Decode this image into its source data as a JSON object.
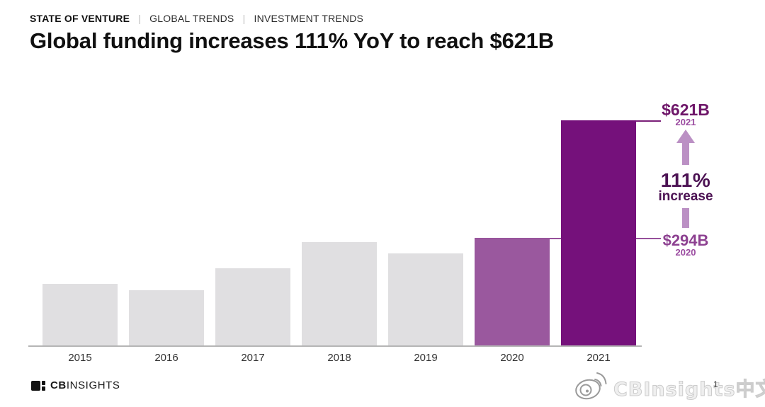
{
  "header": {
    "eyebrow": {
      "primary": "STATE OF VENTURE",
      "separator": "|",
      "secondary": [
        "GLOBAL TRENDS",
        "INVESTMENT TRENDS"
      ]
    },
    "title": "Global funding increases 111% YoY to reach $621B"
  },
  "chart_data": {
    "type": "bar",
    "title": "Global funding increases 111% YoY to reach $621B",
    "categories": [
      "2015",
      "2016",
      "2017",
      "2018",
      "2019",
      "2020",
      "2021"
    ],
    "values": [
      170,
      153,
      212,
      286,
      253,
      294,
      621
    ],
    "value_unit": "$B",
    "ylim": [
      0,
      621
    ],
    "grid": false,
    "legend": false,
    "bar_colors": [
      "#e0dfe1",
      "#e0dfe1",
      "#e0dfe1",
      "#e0dfe1",
      "#e0dfe1",
      "#9a589e",
      "#75117b"
    ],
    "data_labels": {
      "2020": "$294B",
      "2021": "$621B"
    },
    "annotations": {
      "top": {
        "value": "$621B",
        "year": "2021"
      },
      "change": {
        "pct": "111%",
        "label": "increase"
      },
      "bottom": {
        "value": "$294B",
        "year": "2020"
      }
    }
  },
  "footer": {
    "logo_bold": "CB",
    "logo_light": "INSIGHTS"
  },
  "watermark": {
    "text": "CBInsights中文",
    "page_number": "1"
  },
  "colors": {
    "bar_gray": "#e0dfe1",
    "bar_2020_purple": "#9a589e",
    "bar_2021_purple": "#75117b",
    "annotation_change_text": "#4c1253",
    "annotation_top_value": "#6e1669",
    "annotation_bottom_value": "#8d4191",
    "annotation_year": "#9b4ba0",
    "arrow_light_purple": "#bb90c4",
    "leader_line_top": "#7b2079",
    "leader_line_bottom": "#96509b",
    "axis_gray": "#b5b5b5"
  }
}
